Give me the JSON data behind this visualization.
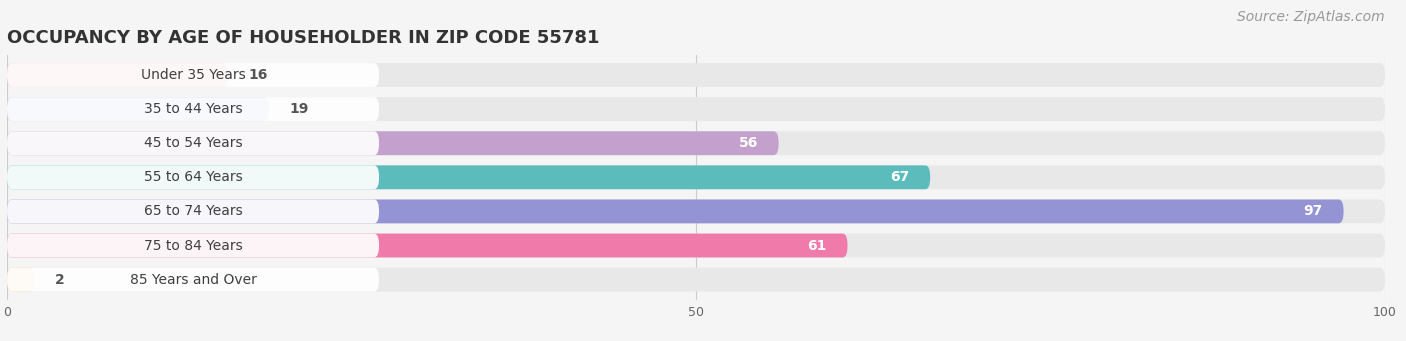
{
  "title": "OCCUPANCY BY AGE OF HOUSEHOLDER IN ZIP CODE 55781",
  "source": "Source: ZipAtlas.com",
  "categories": [
    "Under 35 Years",
    "35 to 44 Years",
    "45 to 54 Years",
    "55 to 64 Years",
    "65 to 74 Years",
    "75 to 84 Years",
    "85 Years and Over"
  ],
  "values": [
    16,
    19,
    56,
    67,
    97,
    61,
    2
  ],
  "bar_colors": [
    "#F0A0A0",
    "#A8BCEA",
    "#C4A0CC",
    "#5CBCBC",
    "#9494D4",
    "#F07AAA",
    "#F8C898"
  ],
  "xmax": 100,
  "xticks": [
    0,
    50,
    100
  ],
  "background_color": "#f5f5f5",
  "bar_bg_color": "#e8e8e8",
  "title_fontsize": 13,
  "label_fontsize": 10,
  "value_fontsize": 10,
  "source_fontsize": 10,
  "label_pill_color": "#ffffff",
  "value_inside_threshold": 30
}
